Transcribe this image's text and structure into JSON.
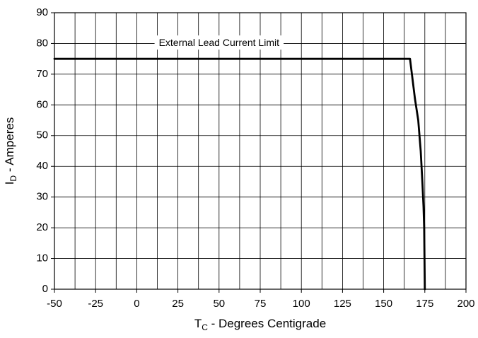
{
  "chart_data": {
    "type": "line",
    "title": "",
    "xlabel": {
      "main": "T",
      "sub": "C",
      "rest": " - Degrees Centigrade"
    },
    "ylabel": {
      "main": "I",
      "sub": "D",
      "rest": " - Amperes"
    },
    "xlim": [
      -50,
      200
    ],
    "ylim": [
      0,
      90
    ],
    "x_ticks": [
      -50,
      -25,
      0,
      25,
      50,
      75,
      100,
      125,
      150,
      175,
      200
    ],
    "y_ticks": [
      0,
      10,
      20,
      30,
      40,
      50,
      60,
      70,
      80,
      90
    ],
    "x_gridlines": [
      -50,
      -37.5,
      -25,
      -12.5,
      0,
      12.5,
      25,
      37.5,
      50,
      62.5,
      75,
      87.5,
      100,
      112.5,
      125,
      137.5,
      150,
      162.5,
      175,
      187.5,
      200
    ],
    "y_gridlines": [
      0,
      10,
      20,
      30,
      40,
      50,
      60,
      70,
      80,
      90
    ],
    "grid": true,
    "annotation": {
      "text": "External Lead Current Limit",
      "x": 50,
      "y": 80
    },
    "series": [
      {
        "x": [
          -50,
          166,
          169,
          171,
          172.5,
          173.5,
          174.2,
          174.6,
          175
        ],
        "y": [
          75,
          75,
          62,
          55,
          45,
          35,
          27,
          20,
          0
        ],
        "color": "#000000"
      }
    ]
  }
}
